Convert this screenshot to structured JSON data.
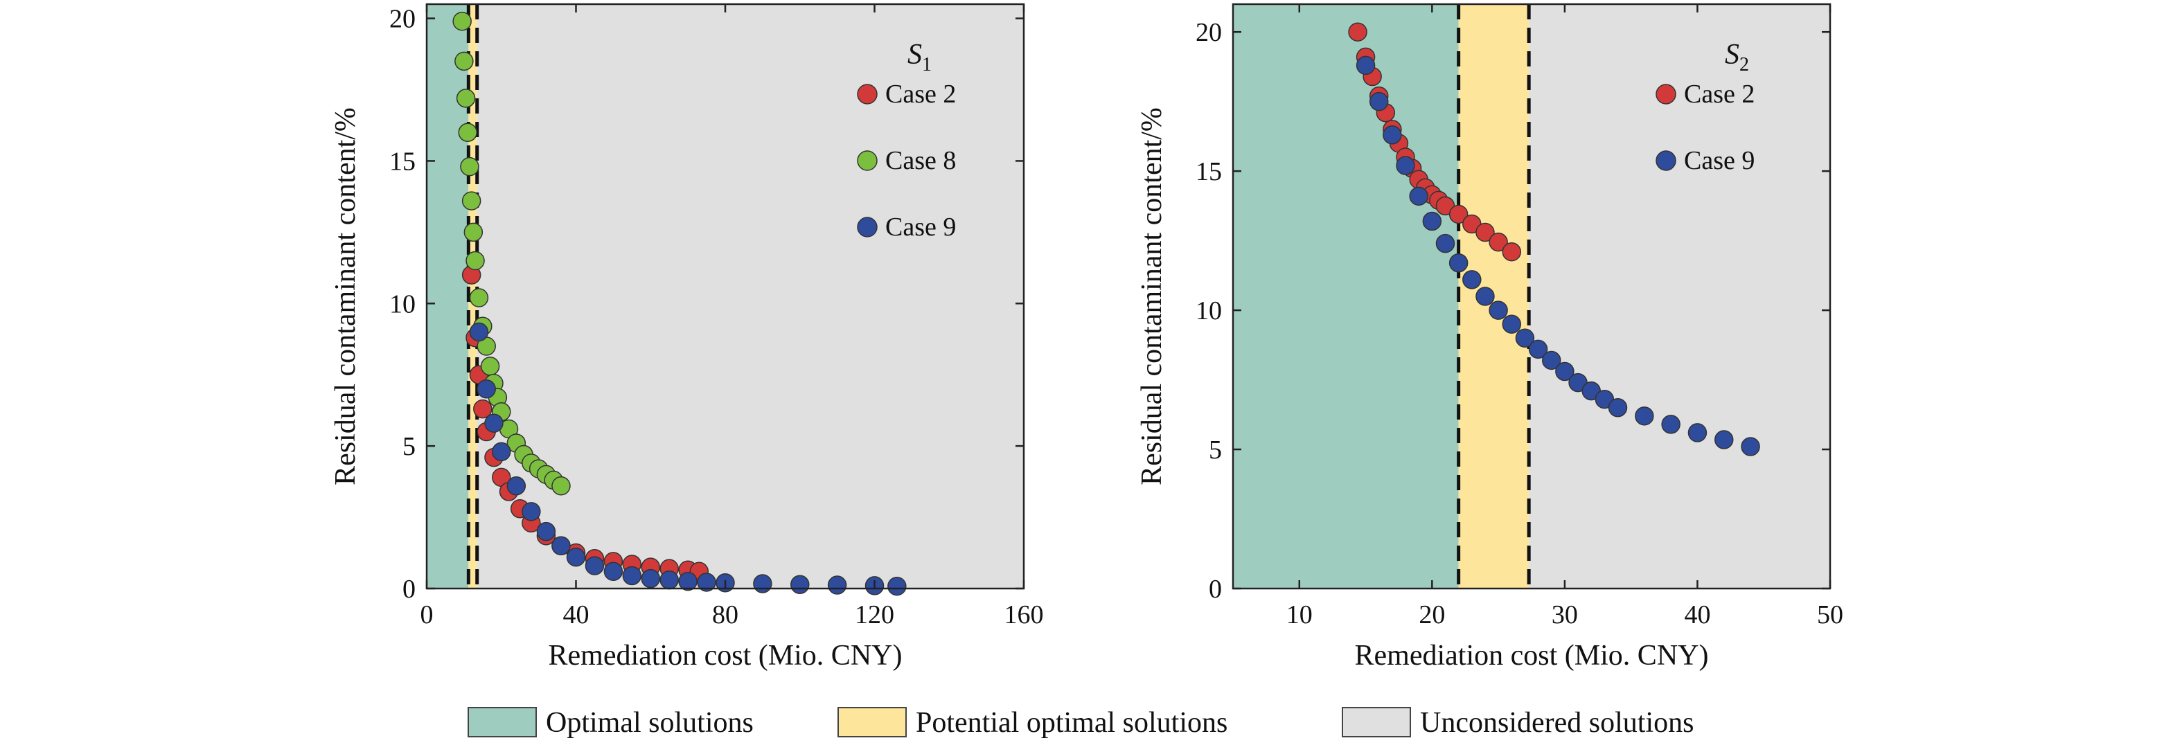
{
  "colors": {
    "optimal": "#9ecdc0",
    "potential": "#fde59b",
    "unconsidered": "#e0e0e0",
    "case2": "#d23a3a",
    "case8": "#7cbf3f",
    "case9": "#2f4b9c",
    "axis": "#222222",
    "dash": "#111111"
  },
  "legend": {
    "optimal": "Optimal solutions",
    "potential": "Potential optimal solutions",
    "unconsidered": "Unconsidered solutions"
  },
  "chart_data": [
    {
      "type": "scatter",
      "panel_label": "S",
      "panel_label_sub": "1",
      "xlabel": "Remediation cost (Mio. CNY)",
      "ylabel": "Residual contaminant content/%",
      "xlim": [
        0,
        160
      ],
      "ylim": [
        0,
        20.5
      ],
      "xticks": [
        0,
        40,
        80,
        120,
        160
      ],
      "yticks": [
        0,
        5,
        10,
        15,
        20
      ],
      "regions": [
        {
          "type": "optimal",
          "x0": 0,
          "x1": 11.2
        },
        {
          "type": "potential",
          "x0": 11.2,
          "x1": 13.5
        },
        {
          "type": "unconsidered",
          "x0": 13.5,
          "x1": 160
        }
      ],
      "dashed_lines_x": [
        11.2,
        13.5
      ],
      "legend_position": "top-right",
      "series": [
        {
          "name": "Case 2",
          "color_key": "case2",
          "x": [
            12,
            13,
            14,
            15,
            16,
            18,
            20,
            22,
            25,
            28,
            32,
            36,
            40,
            45,
            50,
            55,
            60,
            65,
            70,
            73
          ],
          "y": [
            11.0,
            8.8,
            7.5,
            6.3,
            5.5,
            4.6,
            3.9,
            3.4,
            2.8,
            2.3,
            1.85,
            1.5,
            1.25,
            1.05,
            0.95,
            0.85,
            0.75,
            0.7,
            0.65,
            0.6
          ]
        },
        {
          "name": "Case 8",
          "color_key": "case8",
          "x": [
            9.5,
            10,
            10.5,
            11,
            11.5,
            12,
            12.5,
            13,
            14,
            15,
            16,
            17,
            18,
            19,
            20,
            22,
            24,
            26,
            28,
            30,
            32,
            34,
            36
          ],
          "y": [
            19.9,
            18.5,
            17.2,
            16.0,
            14.8,
            13.6,
            12.5,
            11.5,
            10.2,
            9.2,
            8.5,
            7.8,
            7.2,
            6.7,
            6.2,
            5.6,
            5.1,
            4.7,
            4.4,
            4.2,
            4.0,
            3.8,
            3.6
          ]
        },
        {
          "name": "Case 9",
          "color_key": "case9",
          "x": [
            14,
            16,
            18,
            20,
            24,
            28,
            32,
            36,
            40,
            45,
            50,
            55,
            60,
            65,
            70,
            75,
            80,
            90,
            100,
            110,
            120,
            126
          ],
          "y": [
            9.0,
            7.0,
            5.8,
            4.8,
            3.6,
            2.7,
            2.0,
            1.5,
            1.1,
            0.8,
            0.6,
            0.45,
            0.35,
            0.3,
            0.25,
            0.22,
            0.2,
            0.17,
            0.14,
            0.12,
            0.1,
            0.08
          ]
        }
      ]
    },
    {
      "type": "scatter",
      "panel_label": "S",
      "panel_label_sub": "2",
      "xlabel": "Remediation cost (Mio. CNY)",
      "ylabel": "Residual contaminant content/%",
      "xlim": [
        5,
        50
      ],
      "ylim": [
        0,
        21
      ],
      "xticks": [
        10,
        20,
        30,
        40,
        50
      ],
      "yticks": [
        0,
        5,
        10,
        15,
        20
      ],
      "regions": [
        {
          "type": "optimal",
          "x0": 5,
          "x1": 22
        },
        {
          "type": "potential",
          "x0": 22,
          "x1": 27.3
        },
        {
          "type": "unconsidered",
          "x0": 27.3,
          "x1": 50
        }
      ],
      "dashed_lines_x": [
        22,
        27.3
      ],
      "legend_position": "top-right",
      "series": [
        {
          "name": "Case 2",
          "color_key": "case2",
          "x": [
            14.4,
            15,
            15.5,
            16,
            16.5,
            17,
            17.5,
            18,
            18.5,
            19,
            19.5,
            20,
            20.5,
            21,
            22,
            23,
            24,
            25,
            26
          ],
          "y": [
            20.0,
            19.1,
            18.4,
            17.7,
            17.1,
            16.5,
            16.0,
            15.5,
            15.1,
            14.7,
            14.4,
            14.15,
            13.95,
            13.75,
            13.45,
            13.1,
            12.8,
            12.45,
            12.1
          ]
        },
        {
          "name": "Case 9",
          "color_key": "case9",
          "x": [
            15,
            16,
            17,
            18,
            19,
            20,
            21,
            22,
            23,
            24,
            25,
            26,
            27,
            28,
            29,
            30,
            31,
            32,
            33,
            34,
            36,
            38,
            40,
            42,
            44
          ],
          "y": [
            18.8,
            17.5,
            16.3,
            15.2,
            14.1,
            13.2,
            12.4,
            11.7,
            11.1,
            10.5,
            10.0,
            9.5,
            9.0,
            8.6,
            8.2,
            7.8,
            7.4,
            7.1,
            6.8,
            6.5,
            6.2,
            5.9,
            5.6,
            5.35,
            5.1
          ]
        }
      ]
    }
  ]
}
